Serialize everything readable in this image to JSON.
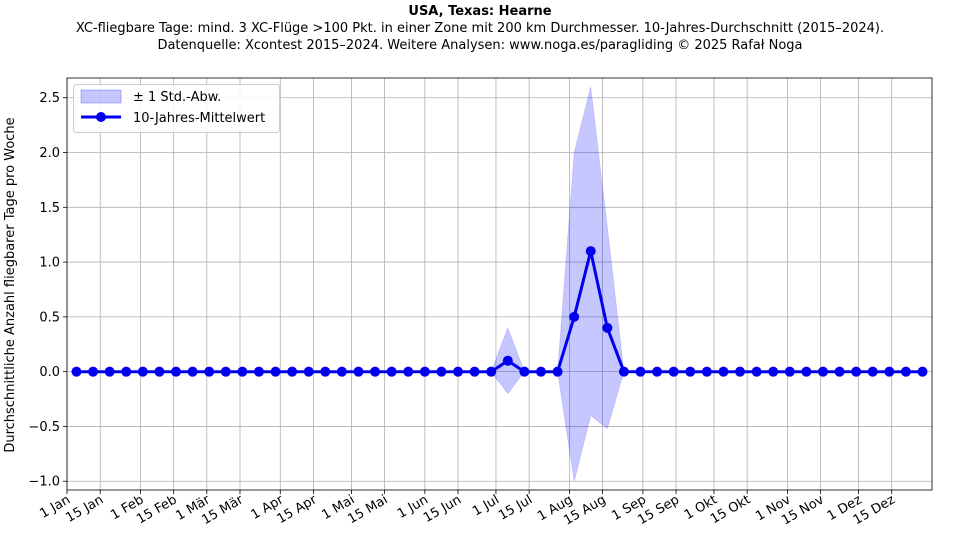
{
  "chart_data": {
    "type": "line",
    "title": "USA, Texas: Hearne",
    "subtitle_line1": "XC-fliegbare Tage: mind. 3 XC-Flüge >100 Pkt. in einer Zone mit 200 km Durchmesser. 10-Jahres-Durchschnitt (2015–2024).",
    "subtitle_line2": "Datenquelle: Xcontest 2015–2024. Weitere Analysen: www.noga.es/paragliding © 2025 Rafał Noga",
    "ylabel": "Durchschnittliche Anzahl fliegbarer Tage pro Woche",
    "xlabel": "",
    "ylim": [
      -1.08,
      2.68
    ],
    "yticks": [
      -1.0,
      -0.5,
      0.0,
      0.5,
      1.0,
      1.5,
      2.0,
      2.5
    ],
    "ytick_labels": [
      "−1.0",
      "−0.5",
      "0.0",
      "0.5",
      "1.0",
      "1.5",
      "2.0",
      "2.5"
    ],
    "xlim": [
      1,
      366
    ],
    "xtick_days": [
      1,
      15,
      32,
      46,
      60,
      74,
      91,
      105,
      121,
      135,
      152,
      166,
      182,
      196,
      213,
      227,
      244,
      258,
      274,
      288,
      305,
      319,
      335,
      349
    ],
    "xtick_labels": [
      "1 Jan",
      "15 Jan",
      "1 Feb",
      "15 Feb",
      "1 Mär",
      "15 Mär",
      "1 Apr",
      "15 Apr",
      "1 Mai",
      "15 Mai",
      "1 Jun",
      "15 Jun",
      "1 Jul",
      "15 Jul",
      "1 Aug",
      "15 Aug",
      "1 Sep",
      "15 Sep",
      "1 Okt",
      "15 Okt",
      "1 Nov",
      "15 Nov",
      "1 Dez",
      "15 Dez"
    ],
    "grid": true,
    "legend_position": "top-left",
    "x": [
      5,
      12,
      19,
      26,
      33,
      40,
      47,
      54,
      61,
      68,
      75,
      82,
      89,
      96,
      103,
      110,
      117,
      124,
      131,
      138,
      145,
      152,
      159,
      166,
      173,
      180,
      187,
      194,
      201,
      208,
      215,
      222,
      229,
      236,
      243,
      250,
      257,
      264,
      271,
      278,
      285,
      292,
      299,
      306,
      313,
      320,
      327,
      334,
      341,
      348,
      355,
      362
    ],
    "series": [
      {
        "name": "10-Jahres-Mittelwert",
        "color": "#0000ee",
        "values": [
          0,
          0,
          0,
          0,
          0,
          0,
          0,
          0,
          0,
          0,
          0,
          0,
          0,
          0,
          0,
          0,
          0,
          0,
          0,
          0,
          0,
          0,
          0,
          0,
          0,
          0,
          0.1,
          0,
          0,
          0,
          0.5,
          1.1,
          0.4,
          0,
          0,
          0,
          0,
          0,
          0,
          0,
          0,
          0,
          0,
          0,
          0,
          0,
          0,
          0,
          0,
          0,
          0,
          0
        ]
      },
      {
        "name": "± 1 Std.-Abw.",
        "color": "#0000ff",
        "std": [
          0,
          0,
          0,
          0,
          0,
          0,
          0,
          0,
          0,
          0,
          0,
          0,
          0,
          0,
          0,
          0,
          0,
          0,
          0,
          0,
          0,
          0,
          0,
          0,
          0,
          0,
          0.3,
          0,
          0,
          0,
          1.5,
          1.5,
          0.92,
          0,
          0,
          0,
          0,
          0,
          0,
          0,
          0,
          0,
          0,
          0,
          0,
          0,
          0,
          0,
          0,
          0,
          0,
          0
        ]
      }
    ]
  }
}
